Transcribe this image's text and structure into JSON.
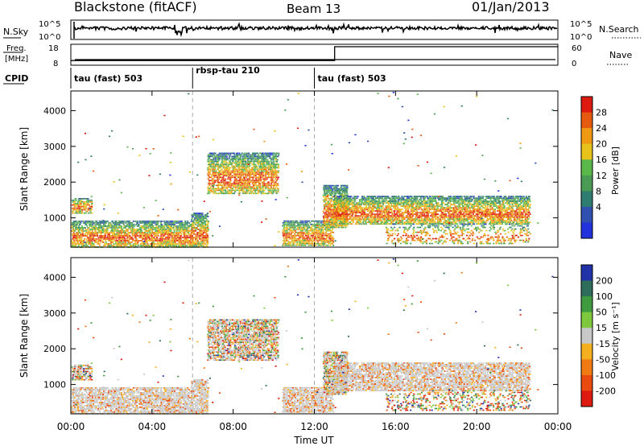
{
  "header": {
    "station": "Blackstone (fitACF)",
    "beam": "Beam 13",
    "date": "01/Jan/2013"
  },
  "colors": {
    "axis": "#000000",
    "scan_divider": "#aaaaaa",
    "ground_scatter": "#c8c8c8"
  },
  "noise_panel": {
    "left_label": "N.Sky",
    "right_label": "N.Search",
    "left_ticks": [
      "10^5",
      "10^0"
    ],
    "right_ticks": [
      "10^5",
      "10^0"
    ]
  },
  "freq_panel": {
    "left_label_line1": "Freq.",
    "left_label_line2": "[MHz]",
    "right_label": "Nave",
    "left_ticks": [
      "18",
      "8"
    ],
    "right_ticks": [
      "60",
      "0"
    ],
    "nave_series": {
      "x_hours": [
        0,
        13,
        13,
        24
      ],
      "nave": [
        13,
        13,
        60,
        60
      ]
    },
    "freq_mhz": 8
  },
  "cpid_panel": {
    "label": "CPID",
    "segments": [
      {
        "label": "tau (fast) 503",
        "start_hour": 0
      },
      {
        "label": "rbsp-tau 210",
        "start_hour": 6
      },
      {
        "label": "tau (fast) 503",
        "start_hour": 12
      }
    ]
  },
  "power_panel": {
    "ylabel": "Slant Range [km]",
    "yticks": [
      "1000",
      "2000",
      "3000",
      "4000"
    ],
    "colorbar_label": "Power [dB]",
    "colorbar_ticks": [
      "4",
      "8",
      "12",
      "16",
      "20",
      "24",
      "28"
    ],
    "colorbar_colors": [
      "#2233dd",
      "#3050b0",
      "#2e7d70",
      "#4b9b55",
      "#5ab84a",
      "#e6c21a",
      "#f09a14",
      "#e65a10",
      "#dd1a10"
    ]
  },
  "velocity_panel": {
    "ylabel": "Slant Range [km]",
    "yticks": [
      "1000",
      "2000",
      "3000",
      "4000"
    ],
    "colorbar_label": "Velocity [m s⁻¹]",
    "colorbar_ticks": [
      "200",
      "100",
      "50",
      "15",
      "-15",
      "-50",
      "-100",
      "-200"
    ],
    "colorbar_colors": [
      "#2233aa",
      "#2d6d5a",
      "#3f9a40",
      "#7dc83c",
      "#c8c8c8",
      "#f5b020",
      "#f07a14",
      "#e84a10",
      "#dd1a10"
    ]
  },
  "x_axis": {
    "label": "Time UT",
    "ticks": [
      "00:00",
      "04:00",
      "08:00",
      "12:00",
      "16:00",
      "20:00",
      "00:00"
    ]
  },
  "chart_data": {
    "type": "heatmap",
    "x_range_hours": [
      0,
      24
    ],
    "y_range_km": [
      180,
      4550
    ],
    "scatter_regions": [
      {
        "t0": 0.0,
        "t1": 1.0,
        "r0": 1150,
        "r1": 1600,
        "kind": "iono"
      },
      {
        "t0": 0.0,
        "t1": 5.9,
        "r0": 200,
        "r1": 950,
        "kind": "ground"
      },
      {
        "t0": 5.9,
        "t1": 6.7,
        "r0": 200,
        "r1": 1150,
        "kind": "ground"
      },
      {
        "t0": 6.7,
        "t1": 10.2,
        "r0": 1700,
        "r1": 2850,
        "kind": "iono"
      },
      {
        "t0": 10.4,
        "t1": 12.9,
        "r0": 250,
        "r1": 950,
        "kind": "ground"
      },
      {
        "t0": 12.4,
        "t1": 13.6,
        "r0": 750,
        "r1": 1950,
        "kind": "iono"
      },
      {
        "t0": 12.9,
        "t1": 22.6,
        "r0": 850,
        "r1": 1650,
        "kind": "ground"
      },
      {
        "t0": 15.5,
        "t1": 22.6,
        "r0": 300,
        "r1": 850,
        "kind": "sparse"
      }
    ]
  }
}
